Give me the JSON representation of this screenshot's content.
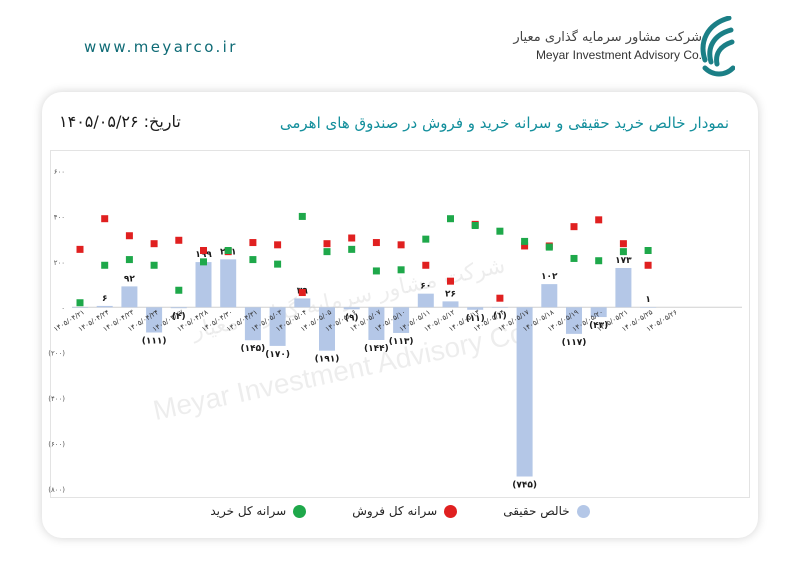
{
  "header": {
    "site_url": "www.meyarco.ir",
    "company_name_fa": "شرکت مشاور سرمایه گذاری معیار",
    "company_name_en": "Meyar Investment Advisory Co."
  },
  "watermark": {
    "text_fa": "شرکت مشاور سرمایه گذاری معیار",
    "text_en": "Meyar Investment Advisory Co."
  },
  "colors": {
    "brand": "#0f6b76",
    "title": "#138f9c",
    "bar": "#b4c7e7",
    "buy_marker": "#1ea84a",
    "sell_marker": "#e02020"
  },
  "chart_data": {
    "type": "bar",
    "title": "نمودار خالص خرید حقیقی و سرانه خرید و فروش در صندوق های اهرمی",
    "date_label": "تاریخ: ۱۴۰۵/۰۵/۲۶",
    "categories": [
      "۱۴۰۵/۰۴/۲۱",
      "۱۴۰۵/۰۴/۲۴",
      "۱۴۰۵/۰۴/۲۳",
      "۱۴۰۵/۰۴/۲۴",
      "۱۴۰۵/۰۴/۲۷",
      "۱۴۰۵/۰۴/۲۸",
      "۱۴۰۵/۰۴/۳۰",
      "۱۴۰۵/۰۴/۳۱",
      "۱۴۰۵/۰۵/۰۳",
      "۱۴۰۵/۰۵/۰۴",
      "۱۴۰۵/۰۵/۰۵",
      "۱۴۰۵/۰۵/۰۶",
      "۱۴۰۵/۰۵/۰۷",
      "۱۴۰۵/۰۵/۱۰",
      "۱۴۰۵/۰۵/۱۱",
      "۱۴۰۵/۰۵/۱۲",
      "۱۴۰۵/۰۵/۱۳",
      "۱۴۰۵/۰۵/۱۴",
      "۱۴۰۵/۰۵/۱۷",
      "۱۴۰۵/۰۵/۱۸",
      "۱۴۰۵/۰۵/۱۹",
      "۱۴۰۵/۰۵/۲۰",
      "۱۴۰۵/۰۵/۲۱",
      "۱۴۰۵/۰۵/۲۵",
      "۱۴۰۵/۰۵/۲۶"
    ],
    "series": [
      {
        "name": "خالص حقیقی",
        "kind": "bar",
        "values": [
          0,
          6,
          92,
          -111,
          -4,
          199,
          211,
          -145,
          -170,
          39,
          -191,
          -9,
          -144,
          -113,
          60,
          26,
          -11,
          -1,
          -745,
          102,
          -117,
          -43,
          173,
          1,
          null
        ],
        "labels": [
          "",
          "۶",
          "۹۲",
          "(۱۱۱)",
          "(۴)",
          "۱۹۹",
          "۲۱۱",
          "(۱۴۵)",
          "(۱۷۰)",
          "۳۹",
          "(۱۹۱)",
          "(۹)",
          "(۱۴۴)",
          "(۱۱۳)",
          "۶۰",
          "۲۶",
          "(۱۱)",
          "(۱)",
          "(۷۴۵)",
          "۱۰۲",
          "(۱۱۷)",
          "(۴۳)",
          "۱۷۳",
          "۱",
          ""
        ]
      },
      {
        "name": "سرانه کل فروش",
        "kind": "marker",
        "values": [
          255,
          390,
          315,
          280,
          295,
          250,
          245,
          285,
          275,
          65,
          280,
          305,
          285,
          275,
          185,
          115,
          365,
          40,
          270,
          270,
          355,
          385,
          280,
          185,
          null
        ]
      },
      {
        "name": "سرانه کل خرید",
        "kind": "marker",
        "values": [
          20,
          185,
          210,
          185,
          75,
          200,
          250,
          210,
          190,
          400,
          245,
          255,
          160,
          165,
          300,
          390,
          360,
          335,
          290,
          265,
          215,
          205,
          245,
          250,
          null
        ]
      }
    ],
    "y_ticks": [
      600,
      400,
      200,
      0,
      -200,
      -400,
      -600,
      -800
    ],
    "y_tick_labels": [
      "۶۰۰",
      "۴۰۰",
      "۲۰۰",
      "۰",
      "(۲۰۰)",
      "(۴۰۰)",
      "(۶۰۰)",
      "(۸۰۰)"
    ],
    "ylim": [
      -800,
      600
    ],
    "grid": false,
    "legend_position": "bottom",
    "legend": [
      "خالص حقیقی",
      "سرانه کل فروش",
      "سرانه کل خرید"
    ]
  }
}
